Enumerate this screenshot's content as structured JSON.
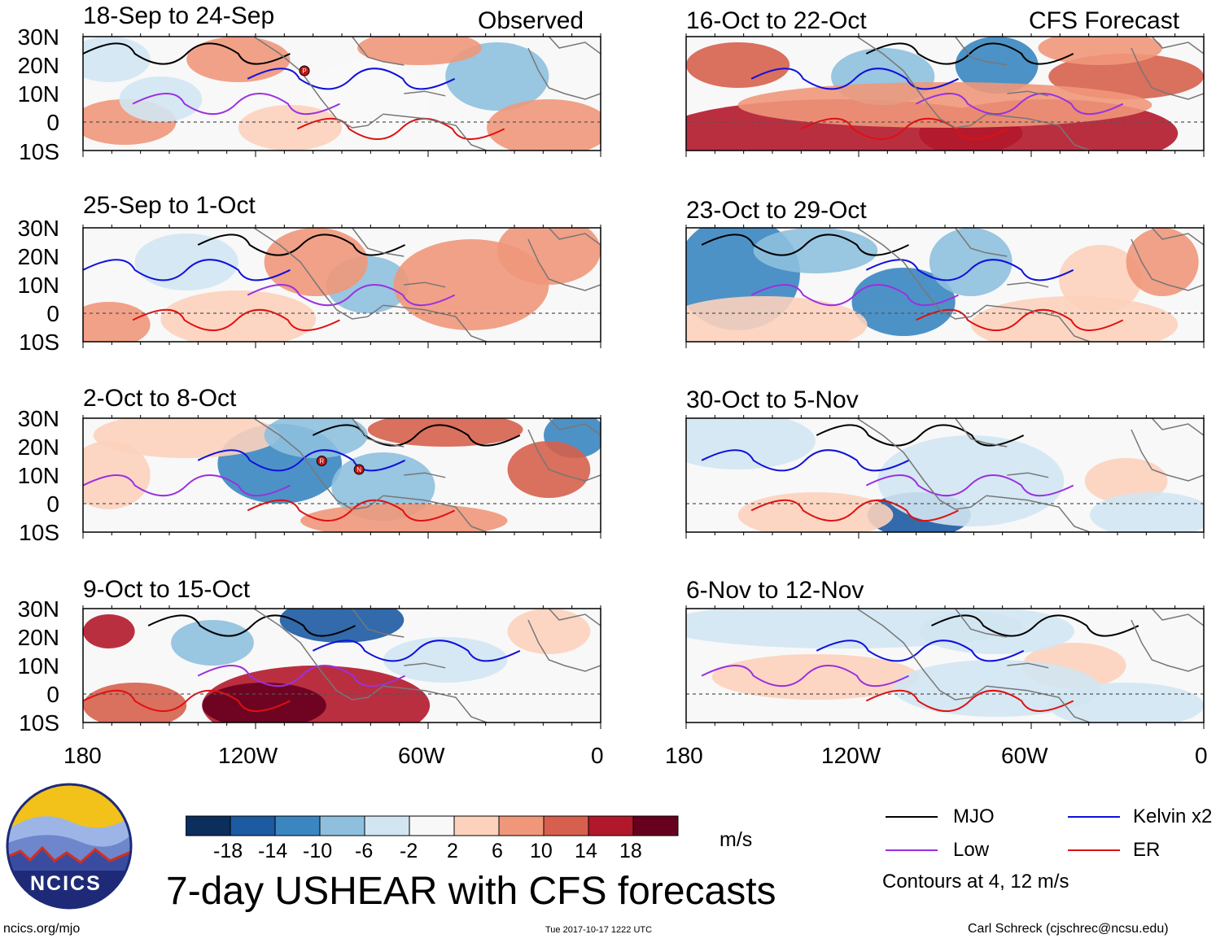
{
  "chart_data": {
    "type": "heatmap",
    "title": "7-day USHEAR with CFS forecasts",
    "variable": "USHEAR",
    "units": "m/s",
    "section_labels": {
      "observed": "Observed",
      "forecast": "CFS Forecast"
    },
    "lat_ticks": [
      "30N",
      "20N",
      "10N",
      "0",
      "10S"
    ],
    "lon_ticks": [
      "180",
      "120W",
      "60W",
      "0"
    ],
    "xlim": [
      -180,
      0
    ],
    "ylim": [
      -10,
      30
    ],
    "colorbar": {
      "levels": [
        "-18",
        "-14",
        "-10",
        "-6",
        "-2",
        "2",
        "6",
        "10",
        "14",
        "18"
      ],
      "colors": [
        "#0b2e5c",
        "#1c5aa2",
        "#3a86c0",
        "#8ec0de",
        "#d2e6f2",
        "#f8f8f8",
        "#fcd2bd",
        "#f0977a",
        "#d6604d",
        "#b2182b",
        "#67001f"
      ]
    },
    "panels": [
      {
        "id": "obs1",
        "label": "18-Sep to 24-Sep",
        "kind": "observed",
        "storms": [
          {
            "lon": -103,
            "lat": 18,
            "symbol": "P"
          }
        ]
      },
      {
        "id": "obs2",
        "label": "25-Sep to 1-Oct",
        "kind": "observed",
        "storms": []
      },
      {
        "id": "obs3",
        "label": "2-Oct to 8-Oct",
        "kind": "observed",
        "storms": [
          {
            "lon": -97,
            "lat": 15,
            "symbol": "R"
          },
          {
            "lon": -84,
            "lat": 12,
            "symbol": "N"
          }
        ]
      },
      {
        "id": "obs4",
        "label": "9-Oct to 15-Oct",
        "kind": "observed",
        "storms": []
      },
      {
        "id": "fc1",
        "label": "16-Oct to 22-Oct",
        "kind": "forecast",
        "storms": []
      },
      {
        "id": "fc2",
        "label": "23-Oct to 29-Oct",
        "kind": "forecast",
        "storms": []
      },
      {
        "id": "fc3",
        "label": "30-Oct to 5-Nov",
        "kind": "forecast",
        "storms": []
      },
      {
        "id": "fc4",
        "label": "6-Nov to 12-Nov",
        "kind": "forecast",
        "storms": []
      }
    ],
    "legend": [
      {
        "label": "MJO",
        "color": "#000000"
      },
      {
        "label": "Kelvin x2",
        "color": "#1010dd"
      },
      {
        "label": "Low",
        "color": "#9b30e0"
      },
      {
        "label": "ER",
        "color": "#e01010"
      }
    ],
    "contour_note": "Contours at 4, 12 m/s"
  },
  "footer": {
    "logo_text": "NCICS",
    "website": "ncics.org/mjo",
    "timestamp": "Tue 2017-10-17 1222 UTC",
    "author": "Carl Schreck (cjschrec@ncsu.edu)"
  },
  "colors": {
    "land_outline": "#777777",
    "equator": "#555555"
  }
}
